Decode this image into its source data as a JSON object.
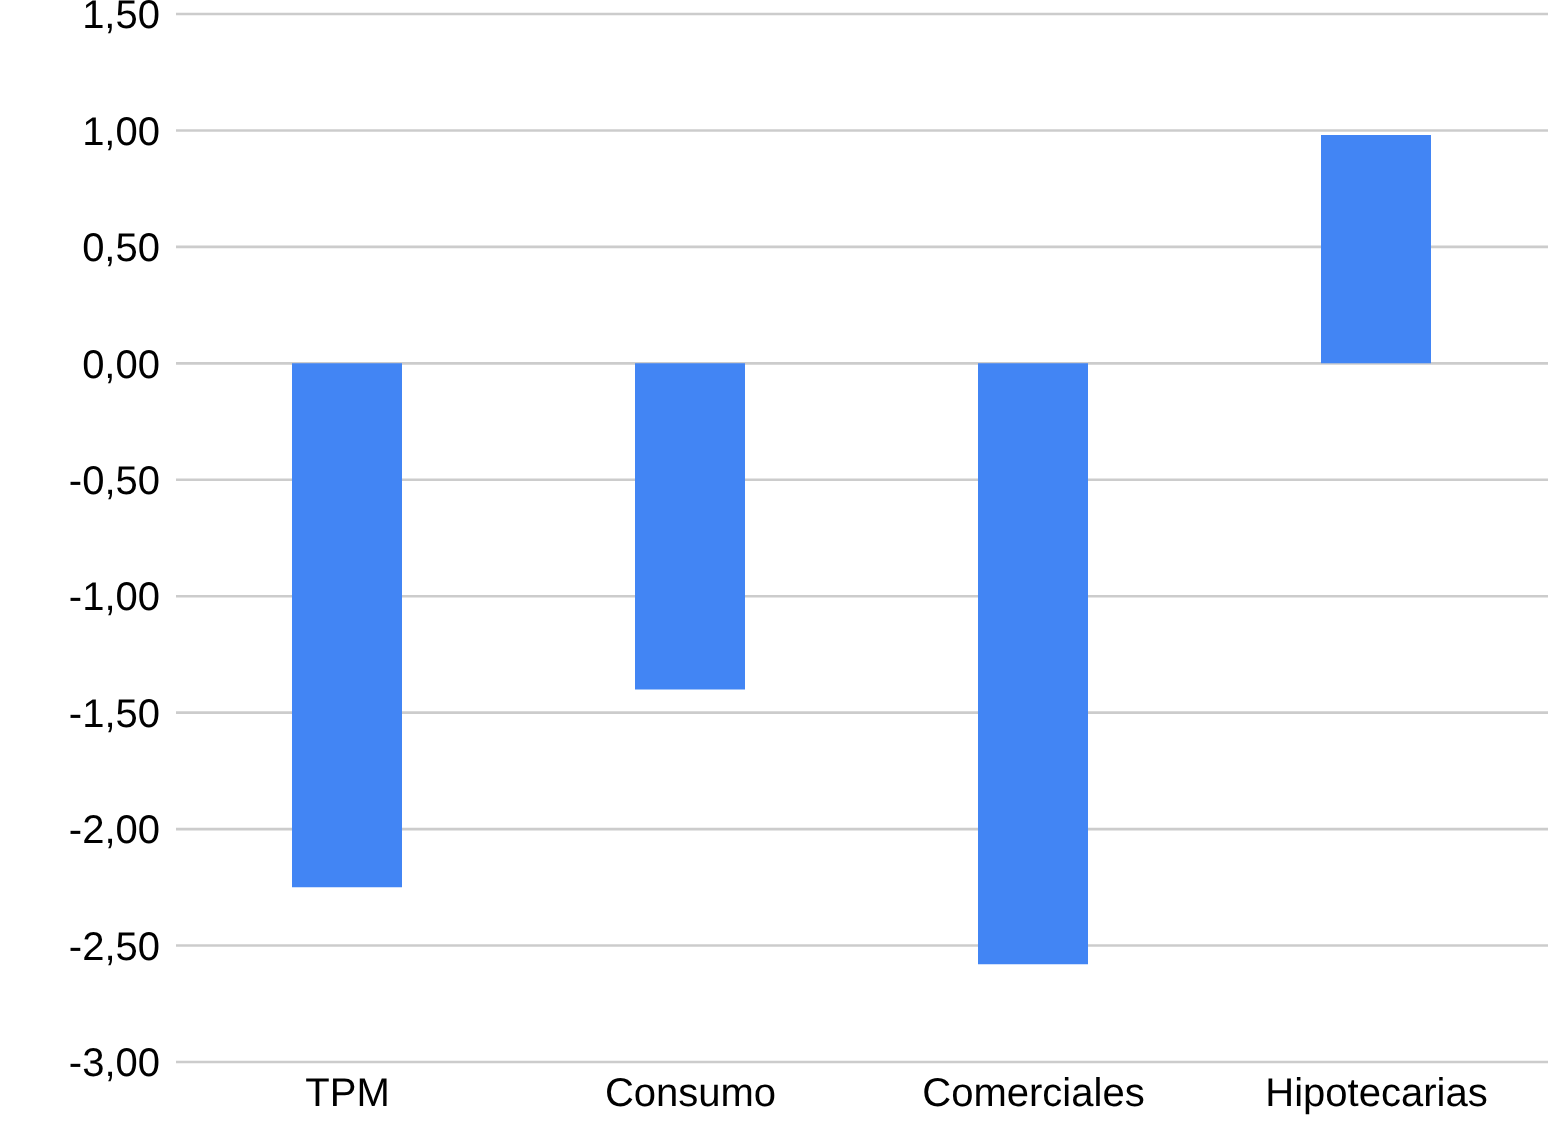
{
  "chart_data": {
    "type": "bar",
    "categories": [
      "TPM",
      "Consumo",
      "Comerciales",
      "Hipotecarias"
    ],
    "values": [
      -2.25,
      -1.4,
      -2.58,
      0.98
    ],
    "color": "#4285f4",
    "ylim": [
      -3,
      1.5
    ],
    "yticks": [
      {
        "value": -3,
        "label": "-3,00"
      },
      {
        "value": -2.5,
        "label": "-2,50"
      },
      {
        "value": -2,
        "label": "-2,00"
      },
      {
        "value": -1.5,
        "label": "-1,50"
      },
      {
        "value": -1,
        "label": "-1,00"
      },
      {
        "value": -0.5,
        "label": "-0,50"
      },
      {
        "value": 0,
        "label": "0,00"
      },
      {
        "value": 0.5,
        "label": "0,50"
      },
      {
        "value": 1,
        "label": "1,00"
      },
      {
        "value": 1.5,
        "label": "1,50"
      }
    ],
    "grid": "y"
  }
}
